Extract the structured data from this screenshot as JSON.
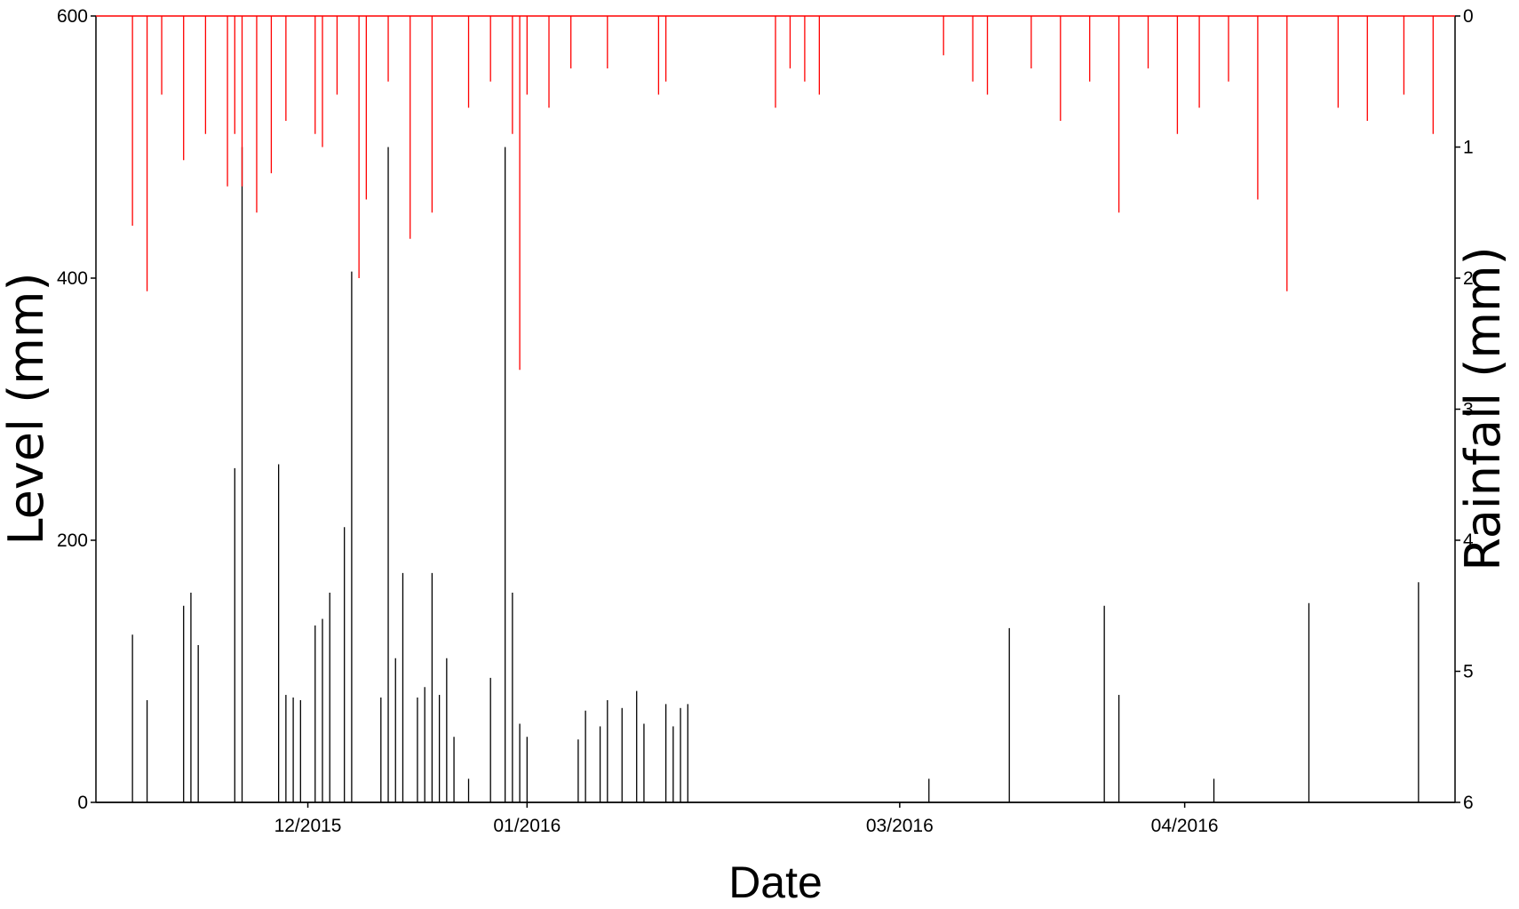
{
  "chart_data": {
    "type": "line",
    "title": "",
    "xlabel": "Date",
    "ylabel": "Level (mm)",
    "y2label": "Rainfall (mm)",
    "x_tick_labels": [
      "12/2015",
      "01/2016",
      "03/2016",
      "04/2016"
    ],
    "ylim": [
      0,
      600
    ],
    "y_ticks": [
      0,
      200,
      400,
      600
    ],
    "y2lim": [
      0,
      6
    ],
    "y2_inverted": true,
    "y2_ticks": [
      0,
      1,
      2,
      3,
      4,
      5,
      6
    ],
    "grid": false,
    "legend": "none",
    "series": [
      {
        "axis": "left",
        "color": "#000000",
        "x": [
          "2015-11-14",
          "2015-11-16",
          "2015-11-21",
          "2015-11-22",
          "2015-11-23",
          "2015-11-28",
          "2015-11-29",
          "2015-12-04",
          "2015-12-05",
          "2015-12-06",
          "2015-12-07",
          "2015-12-09",
          "2015-12-10",
          "2015-12-11",
          "2015-12-13",
          "2015-12-14",
          "2015-12-18",
          "2015-12-19",
          "2015-12-20",
          "2015-12-21",
          "2015-12-23",
          "2015-12-24",
          "2015-12-25",
          "2015-12-26",
          "2015-12-27",
          "2015-12-28",
          "2015-12-30",
          "2016-01-02",
          "2016-01-04",
          "2016-01-05",
          "2016-01-06",
          "2016-01-07",
          "2016-01-14",
          "2016-01-15",
          "2016-01-17",
          "2016-01-18",
          "2016-01-20",
          "2016-01-22",
          "2016-01-23",
          "2016-01-26",
          "2016-01-27",
          "2016-01-28",
          "2016-01-29",
          "2016-03-02",
          "2016-03-13",
          "2016-03-26",
          "2016-03-28",
          "2016-04-10",
          "2016-04-23",
          "2016-05-08"
        ],
        "y": [
          128,
          78,
          150,
          160,
          120,
          255,
          500,
          258,
          82,
          80,
          78,
          135,
          140,
          160,
          210,
          405,
          80,
          500,
          110,
          175,
          80,
          88,
          175,
          82,
          110,
          50,
          18,
          95,
          500,
          160,
          60,
          50,
          48,
          70,
          58,
          78,
          72,
          85,
          60,
          75,
          58,
          72,
          75,
          18,
          133,
          150,
          82,
          18,
          152,
          168
        ]
      },
      {
        "axis": "right",
        "color": "#ff0000",
        "x": [
          "2015-11-14",
          "2015-11-16",
          "2015-11-18",
          "2015-11-21",
          "2015-11-24",
          "2015-11-27",
          "2015-11-28",
          "2015-11-29",
          "2015-12-01",
          "2015-12-03",
          "2015-12-05",
          "2015-12-09",
          "2015-12-10",
          "2015-12-12",
          "2015-12-15",
          "2015-12-16",
          "2015-12-19",
          "2015-12-22",
          "2015-12-25",
          "2015-12-30",
          "2016-01-02",
          "2016-01-05",
          "2016-01-06",
          "2016-01-07",
          "2016-01-10",
          "2016-01-13",
          "2016-01-18",
          "2016-01-25",
          "2016-01-26",
          "2016-02-10",
          "2016-02-12",
          "2016-02-14",
          "2016-02-16",
          "2016-03-04",
          "2016-03-08",
          "2016-03-10",
          "2016-03-16",
          "2016-03-20",
          "2016-03-24",
          "2016-03-28",
          "2016-04-01",
          "2016-04-05",
          "2016-04-08",
          "2016-04-12",
          "2016-04-16",
          "2016-04-20",
          "2016-04-27",
          "2016-05-01",
          "2016-05-06",
          "2016-05-10"
        ],
        "y": [
          1.6,
          2.1,
          0.6,
          1.1,
          0.9,
          1.3,
          0.9,
          1.3,
          1.5,
          1.2,
          0.8,
          0.9,
          1.0,
          0.6,
          2.0,
          1.4,
          0.5,
          1.7,
          1.5,
          0.7,
          0.5,
          0.9,
          2.7,
          0.6,
          0.7,
          0.4,
          0.4,
          0.6,
          0.5,
          0.7,
          0.4,
          0.5,
          0.6,
          0.3,
          0.5,
          0.6,
          0.4,
          0.8,
          0.5,
          1.5,
          0.4,
          0.9,
          0.7,
          0.5,
          1.4,
          2.1,
          0.7,
          0.8,
          0.6,
          0.9
        ]
      }
    ]
  }
}
